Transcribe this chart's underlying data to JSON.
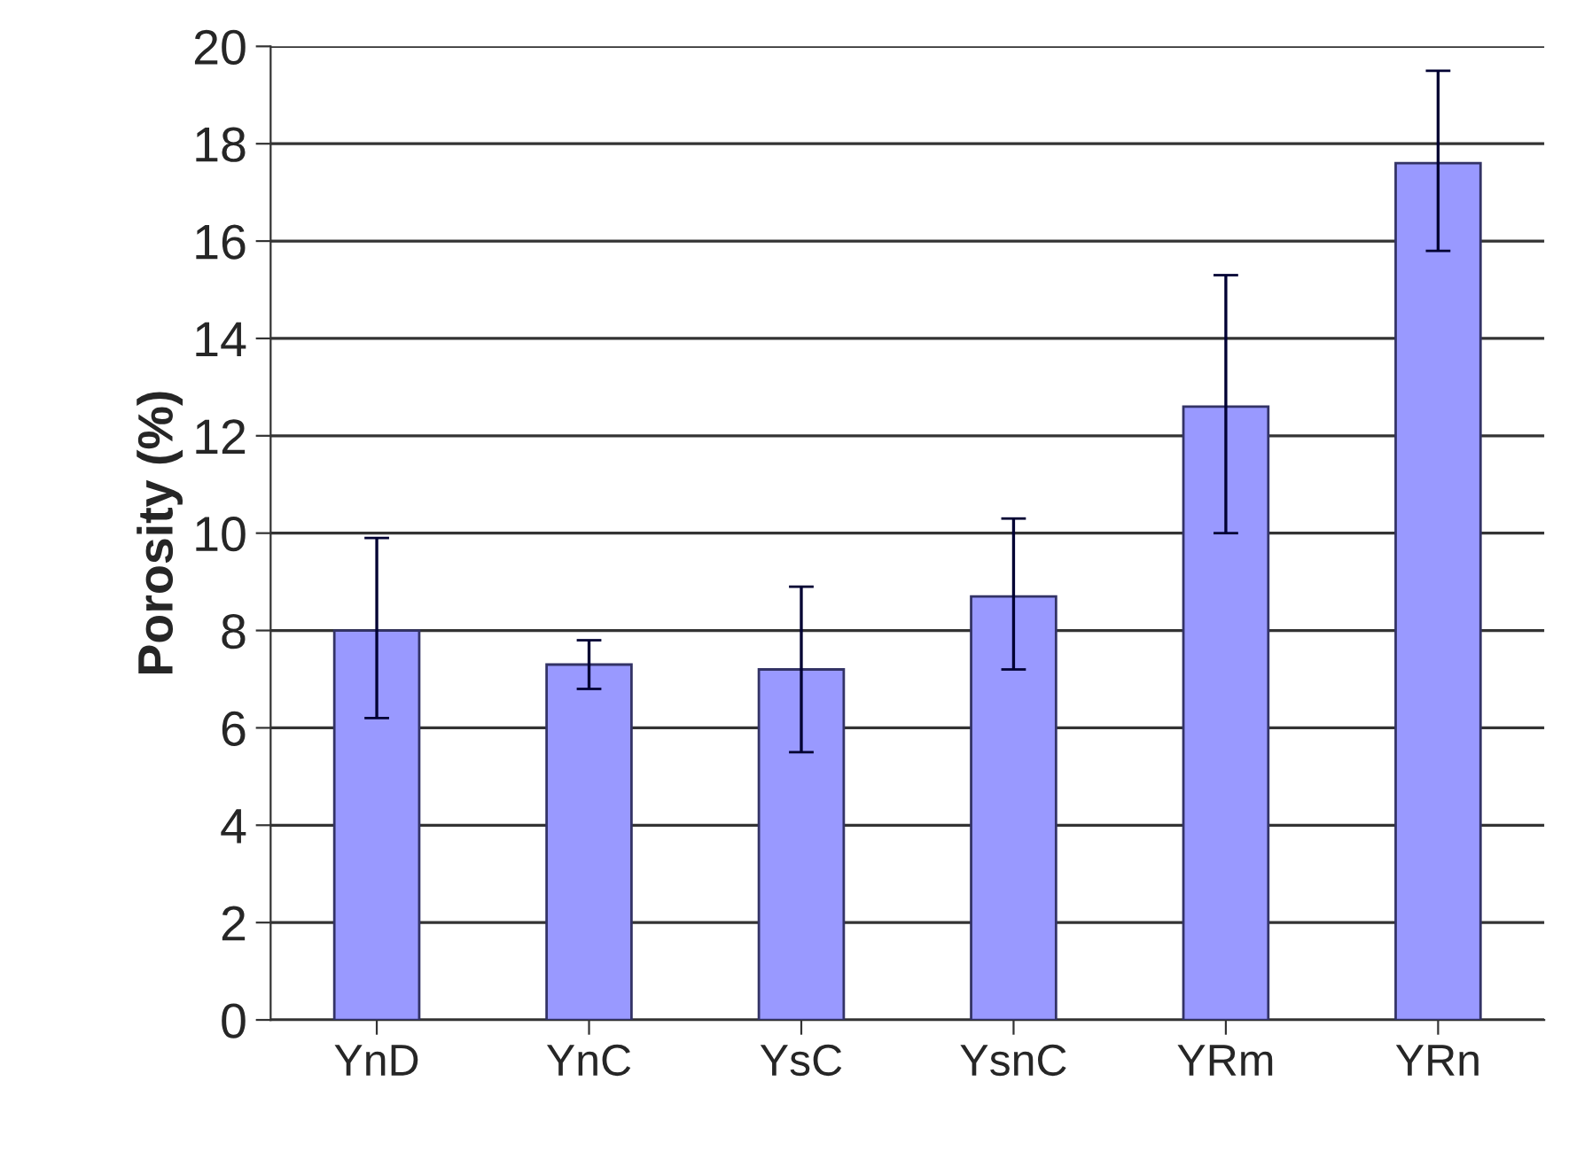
{
  "chart_data": {
    "type": "bar",
    "ylabel": "Porosity (%)",
    "categories": [
      "YnD",
      "YnC",
      "YsC",
      "YsnC",
      "YRm",
      "YRn"
    ],
    "values": [
      8.0,
      7.3,
      7.2,
      8.7,
      12.6,
      17.6
    ],
    "errors": [
      [
        6.2,
        9.9
      ],
      [
        6.8,
        7.8
      ],
      [
        5.5,
        8.9
      ],
      [
        7.2,
        10.3
      ],
      [
        10.0,
        15.3
      ],
      [
        15.8,
        19.5
      ]
    ],
    "color": "#9999ff",
    "ylim": [
      0,
      20
    ],
    "yticks": [
      0,
      2,
      4,
      6,
      8,
      10,
      12,
      14,
      16,
      18,
      20
    ],
    "grid": "y"
  }
}
